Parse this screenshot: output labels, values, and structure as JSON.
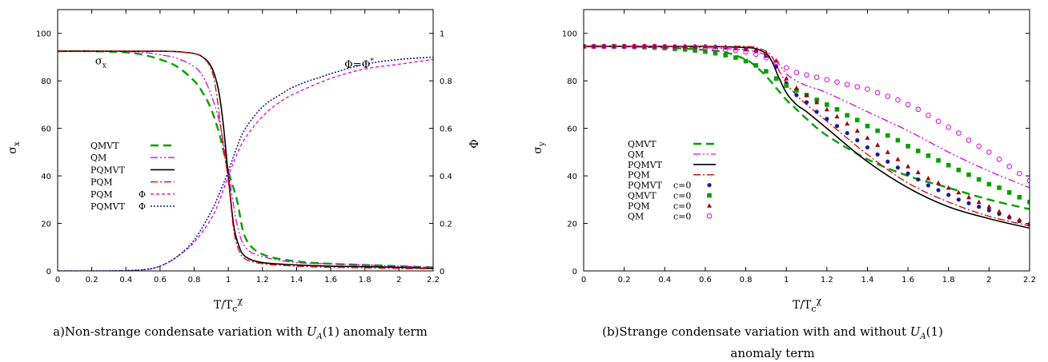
{
  "chart_data": [
    {
      "type": "line",
      "caption_prefix": "a)Non-strange condensate variation with ",
      "caption_math": "U_A(1)",
      "caption_suffix": " anomaly term",
      "xlabel": "T/T_c^χ",
      "ylabel": "σ_x",
      "y2label": "Φ",
      "xlim": [
        0,
        2.2
      ],
      "ylim": [
        0,
        110
      ],
      "y2lim": [
        0,
        1.1
      ],
      "xticks": [
        0,
        0.2,
        0.4,
        0.6,
        0.8,
        1,
        1.2,
        1.4,
        1.6,
        1.8,
        2,
        2.2
      ],
      "yticks": [
        0,
        20,
        40,
        60,
        80,
        100
      ],
      "y2ticks": [
        0,
        0.2,
        0.4,
        0.6,
        0.8,
        1
      ],
      "annotations": [
        {
          "text": "σ_x",
          "x": 0.22,
          "y": 87
        },
        {
          "text": "Φ=Φ^*",
          "x": 1.68,
          "y": 85.5
        }
      ],
      "series": [
        {
          "name": "QMVT",
          "legend_extra": "",
          "color": "#00a000",
          "dash": "10,6",
          "width": 2.4,
          "axis": "y",
          "x": [
            0,
            0.2,
            0.4,
            0.5,
            0.6,
            0.7,
            0.8,
            0.85,
            0.9,
            0.95,
            1.0,
            1.05,
            1.1,
            1.2,
            1.4,
            1.6,
            1.8,
            2.0,
            2.2
          ],
          "y": [
            92.5,
            92.5,
            92,
            91,
            89,
            86,
            80,
            75,
            68,
            57,
            42,
            30,
            14,
            7,
            4,
            3,
            2.5,
            2,
            1.5
          ]
        },
        {
          "name": "QM",
          "legend_extra": "",
          "color": "#e000e0",
          "dash": "9,3,2,3,2,3",
          "width": 1.3,
          "axis": "y",
          "x": [
            0,
            0.2,
            0.4,
            0.5,
            0.6,
            0.7,
            0.8,
            0.85,
            0.9,
            0.95,
            1.0,
            1.05,
            1.1,
            1.2,
            1.4,
            1.6,
            1.8,
            2.0,
            2.2
          ],
          "y": [
            92.5,
            92.5,
            92.3,
            92,
            91,
            89.5,
            86,
            82,
            74,
            62,
            42,
            20,
            10,
            6,
            3.5,
            3,
            2.5,
            2,
            1.5
          ]
        },
        {
          "name": "PQMVT",
          "legend_extra": "",
          "color": "#000000",
          "dash": "",
          "width": 1.6,
          "axis": "y",
          "x": [
            0,
            0.4,
            0.6,
            0.7,
            0.8,
            0.85,
            0.9,
            0.94,
            0.97,
            1.0,
            1.03,
            1.06,
            1.1,
            1.2,
            1.4,
            1.6,
            1.8,
            2.0,
            2.2
          ],
          "y": [
            92.5,
            92.5,
            92.5,
            92.3,
            91.5,
            90,
            86,
            77,
            62,
            40,
            20,
            11,
            6,
            3.5,
            2.5,
            2,
            1.8,
            1.5,
            1
          ]
        },
        {
          "name": "PQM",
          "legend_extra": "",
          "color": "#e00000",
          "dash": "9,3,2,3",
          "width": 1.3,
          "axis": "y",
          "x": [
            0,
            0.4,
            0.6,
            0.7,
            0.8,
            0.85,
            0.9,
            0.93,
            0.96,
            1.0,
            1.03,
            1.06,
            1.1,
            1.2,
            1.4,
            1.6,
            1.8,
            2.0,
            2.2
          ],
          "y": [
            92.5,
            92.5,
            92.5,
            92.3,
            91.5,
            90,
            85,
            75,
            58,
            38,
            18,
            9,
            5,
            3,
            2,
            1.5,
            1.3,
            1,
            1
          ]
        },
        {
          "name": "PQM",
          "legend_extra": "Φ",
          "color": "#e000e0",
          "dash": "4,3",
          "width": 1.3,
          "axis": "y2",
          "x": [
            0,
            0.3,
            0.5,
            0.6,
            0.7,
            0.8,
            0.9,
            0.95,
            1.0,
            1.05,
            1.1,
            1.2,
            1.3,
            1.4,
            1.6,
            1.8,
            2.0,
            2.2
          ],
          "y": [
            0.0,
            0.0,
            0.005,
            0.02,
            0.06,
            0.12,
            0.22,
            0.3,
            0.4,
            0.49,
            0.56,
            0.65,
            0.71,
            0.75,
            0.81,
            0.85,
            0.87,
            0.89
          ]
        },
        {
          "name": "PQMVT",
          "legend_extra": "Φ",
          "color": "#1a1a9a",
          "dash": "2,2",
          "width": 1.6,
          "axis": "y2",
          "x": [
            0,
            0.3,
            0.5,
            0.6,
            0.7,
            0.8,
            0.9,
            0.95,
            1.0,
            1.05,
            1.1,
            1.2,
            1.3,
            1.4,
            1.6,
            1.8,
            2.0,
            2.2
          ],
          "y": [
            0.0,
            0.0,
            0.005,
            0.02,
            0.06,
            0.13,
            0.25,
            0.33,
            0.42,
            0.52,
            0.6,
            0.69,
            0.74,
            0.78,
            0.83,
            0.87,
            0.89,
            0.9
          ]
        }
      ]
    },
    {
      "type": "line",
      "caption_prefix": "(b)Strange condensate variation with and without ",
      "caption_math": "U_A(1)",
      "caption_suffix": "",
      "caption_line2": "anomaly term",
      "xlabel": "T/T_c^χ",
      "ylabel": "σ_y",
      "xlim": [
        0,
        2.2
      ],
      "ylim": [
        0,
        110
      ],
      "xticks": [
        0,
        0.2,
        0.4,
        0.6,
        0.8,
        1,
        1.2,
        1.4,
        1.6,
        1.8,
        2,
        2.2
      ],
      "yticks": [
        0,
        20,
        40,
        60,
        80,
        100
      ],
      "series": [
        {
          "name": "QMVT",
          "legend_extra": "",
          "kind": "line",
          "color": "#00a000",
          "dash": "10,6",
          "width": 2.4,
          "x": [
            0,
            0.2,
            0.4,
            0.6,
            0.7,
            0.8,
            0.85,
            0.9,
            0.95,
            1.0,
            1.05,
            1.1,
            1.2,
            1.4,
            1.6,
            1.8,
            2.0,
            2.2
          ],
          "y": [
            94.5,
            94.5,
            94,
            93,
            92,
            89,
            86,
            82,
            77,
            72,
            68,
            64,
            57,
            47,
            40,
            35,
            30,
            26
          ]
        },
        {
          "name": "QM",
          "legend_extra": "",
          "kind": "line",
          "color": "#e000e0",
          "dash": "9,3,2,3,2,3",
          "width": 1.3,
          "x": [
            0,
            0.2,
            0.4,
            0.6,
            0.8,
            0.9,
            0.95,
            1.0,
            1.05,
            1.1,
            1.2,
            1.4,
            1.6,
            1.8,
            2.0,
            2.2
          ],
          "y": [
            94.5,
            94.5,
            94.3,
            94,
            93,
            91,
            88.5,
            83,
            80,
            78,
            75,
            67,
            59,
            50,
            42,
            35
          ]
        },
        {
          "name": "PQMVT",
          "legend_extra": "",
          "kind": "line",
          "color": "#000000",
          "dash": "",
          "width": 1.6,
          "x": [
            0,
            0.4,
            0.6,
            0.8,
            0.85,
            0.9,
            0.93,
            0.96,
            1.0,
            1.05,
            1.1,
            1.2,
            1.4,
            1.6,
            1.8,
            2.0,
            2.2
          ],
          "y": [
            94.5,
            94.5,
            94.5,
            94,
            93.5,
            91.5,
            88,
            82,
            75,
            70,
            67,
            60,
            46,
            35,
            27,
            22,
            18
          ]
        },
        {
          "name": "PQM",
          "legend_extra": "",
          "kind": "line",
          "color": "#e00000",
          "dash": "9,3,2,3",
          "width": 1.3,
          "x": [
            0,
            0.4,
            0.6,
            0.8,
            0.85,
            0.9,
            0.93,
            0.96,
            1.0,
            1.05,
            1.1,
            1.2,
            1.4,
            1.6,
            1.8,
            2.0,
            2.2
          ],
          "y": [
            94.5,
            94.5,
            94.5,
            94.5,
            94,
            92.5,
            90,
            85,
            79,
            74,
            70,
            63,
            49,
            37,
            29,
            23,
            19
          ]
        },
        {
          "name": "PQMVT",
          "legend_extra": "c=0",
          "kind": "points",
          "marker": "circle-filled",
          "color": "#1a1a9a",
          "x": [
            0,
            0.05,
            0.1,
            0.15,
            0.2,
            0.25,
            0.3,
            0.35,
            0.4,
            0.45,
            0.5,
            0.55,
            0.6,
            0.65,
            0.7,
            0.75,
            0.8,
            0.85,
            0.9,
            0.95,
            1.0,
            1.05,
            1.1,
            1.15,
            1.2,
            1.25,
            1.3,
            1.35,
            1.4,
            1.45,
            1.5,
            1.55,
            1.6,
            1.65,
            1.7,
            1.75,
            1.8,
            1.85,
            1.9,
            1.95,
            2.0,
            2.05,
            2.1,
            2.15,
            2.2
          ],
          "y": [
            94.5,
            94.5,
            94.5,
            94.5,
            94.5,
            94.5,
            94.5,
            94.5,
            94.5,
            94.5,
            94.5,
            94.5,
            94.5,
            94.3,
            94,
            93.7,
            93.2,
            92.5,
            90.5,
            86,
            79,
            74,
            71,
            67,
            64,
            61,
            58,
            55,
            52,
            49,
            46,
            43.5,
            41,
            38.5,
            36,
            34,
            32,
            30,
            28.5,
            27,
            25.5,
            24,
            22.5,
            21,
            19.5
          ]
        },
        {
          "name": "QMVT",
          "legend_extra": "c=0",
          "kind": "points",
          "marker": "square-filled",
          "color": "#00a000",
          "x": [
            0,
            0.05,
            0.1,
            0.15,
            0.2,
            0.25,
            0.3,
            0.35,
            0.4,
            0.45,
            0.5,
            0.55,
            0.6,
            0.65,
            0.7,
            0.75,
            0.8,
            0.85,
            0.9,
            0.95,
            1.0,
            1.05,
            1.1,
            1.15,
            1.2,
            1.25,
            1.3,
            1.35,
            1.4,
            1.45,
            1.5,
            1.55,
            1.6,
            1.65,
            1.7,
            1.75,
            1.8,
            1.85,
            1.9,
            1.95,
            2.0,
            2.05,
            2.1,
            2.15,
            2.2
          ],
          "y": [
            94.5,
            94.5,
            94.5,
            94.5,
            94.4,
            94.3,
            94.2,
            94,
            93.8,
            93.5,
            93.2,
            92.8,
            92.3,
            91.6,
            90.8,
            89.8,
            88.3,
            86.5,
            84,
            81,
            78,
            76,
            74,
            72,
            70,
            68,
            65.5,
            63.5,
            61,
            59,
            57,
            55,
            52.5,
            50.5,
            48.5,
            46.5,
            44.5,
            42.5,
            40.5,
            38.5,
            36.5,
            35,
            33,
            31,
            29
          ]
        },
        {
          "name": "PQM",
          "legend_extra": "c=0",
          "kind": "points",
          "marker": "triangle-filled",
          "color": "#a00000",
          "x": [
            0,
            0.05,
            0.1,
            0.15,
            0.2,
            0.25,
            0.3,
            0.35,
            0.4,
            0.45,
            0.5,
            0.55,
            0.6,
            0.65,
            0.7,
            0.75,
            0.8,
            0.85,
            0.9,
            0.95,
            1.0,
            1.05,
            1.1,
            1.15,
            1.2,
            1.25,
            1.3,
            1.35,
            1.4,
            1.45,
            1.5,
            1.55,
            1.6,
            1.65,
            1.7,
            1.75,
            1.8,
            1.85,
            1.9,
            1.95,
            2.0,
            2.05,
            2.1,
            2.15,
            2.2
          ],
          "y": [
            94.5,
            94.5,
            94.5,
            94.5,
            94.5,
            94.5,
            94.5,
            94.5,
            94.5,
            94.5,
            94.5,
            94.5,
            94.5,
            94.4,
            94.3,
            94,
            93.7,
            93,
            91.8,
            88.5,
            81,
            77,
            74,
            71,
            68,
            65,
            62,
            59,
            56,
            53,
            50,
            47,
            44,
            41.5,
            39,
            37,
            35,
            33,
            31,
            29,
            27,
            25,
            23,
            21.5,
            20
          ]
        },
        {
          "name": "QM",
          "legend_extra": "c=0",
          "kind": "points",
          "marker": "circle-open",
          "color": "#e000e0",
          "x": [
            0,
            0.05,
            0.1,
            0.15,
            0.2,
            0.25,
            0.3,
            0.35,
            0.4,
            0.45,
            0.5,
            0.55,
            0.6,
            0.65,
            0.7,
            0.75,
            0.8,
            0.85,
            0.9,
            0.95,
            1.0,
            1.05,
            1.1,
            1.15,
            1.2,
            1.25,
            1.3,
            1.35,
            1.4,
            1.45,
            1.5,
            1.55,
            1.6,
            1.65,
            1.7,
            1.75,
            1.8,
            1.85,
            1.9,
            1.95,
            2.0,
            2.05,
            2.1,
            2.15,
            2.2
          ],
          "y": [
            94.5,
            94.5,
            94.5,
            94.5,
            94.5,
            94.5,
            94.5,
            94.5,
            94.4,
            94.3,
            94.2,
            94,
            93.8,
            93.5,
            93.2,
            92.8,
            92.2,
            91.2,
            89.7,
            87.8,
            85.5,
            83.5,
            82.5,
            81.5,
            80.5,
            79.5,
            78.5,
            77.5,
            76.5,
            75,
            73.5,
            72,
            70,
            68,
            65.5,
            63,
            60.5,
            58,
            55,
            52.5,
            50,
            47,
            44,
            41,
            38
          ]
        }
      ]
    }
  ]
}
